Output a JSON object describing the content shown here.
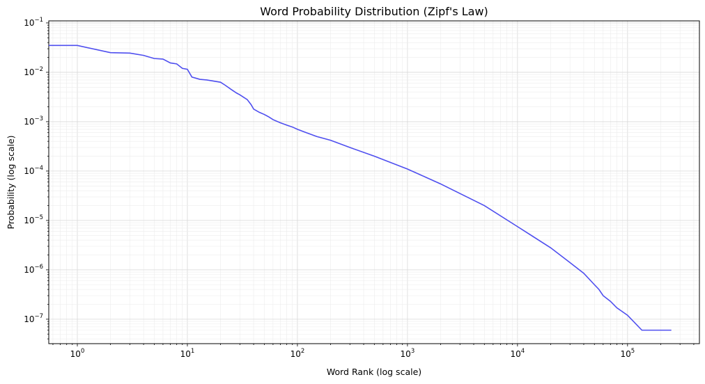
{
  "chart_data": {
    "type": "line",
    "title": "Word Probability Distribution (Zipf's Law)",
    "xlabel": "Word Rank (log scale)",
    "ylabel": "Probability (log scale)",
    "x_scale": "log",
    "y_scale": "log",
    "xlim": [
      0.55,
      450000
    ],
    "ylim": [
      3.2e-08,
      0.11
    ],
    "grid": "major and minor",
    "line_color": "#4444ee",
    "x_ticks": [
      {
        "base": "10",
        "exp": "0",
        "value": 1
      },
      {
        "base": "10",
        "exp": "1",
        "value": 10
      },
      {
        "base": "10",
        "exp": "2",
        "value": 100
      },
      {
        "base": "10",
        "exp": "3",
        "value": 1000
      },
      {
        "base": "10",
        "exp": "4",
        "value": 10000
      },
      {
        "base": "10",
        "exp": "5",
        "value": 100000
      }
    ],
    "y_ticks": [
      {
        "base": "10",
        "exp": "−1",
        "value": 0.1
      },
      {
        "base": "10",
        "exp": "−2",
        "value": 0.01
      },
      {
        "base": "10",
        "exp": "−3",
        "value": 0.001
      },
      {
        "base": "10",
        "exp": "−4",
        "value": 0.0001
      },
      {
        "base": "10",
        "exp": "−5",
        "value": 1e-05
      },
      {
        "base": "10",
        "exp": "−6",
        "value": 1e-06
      },
      {
        "base": "10",
        "exp": "−7",
        "value": 1e-07
      }
    ],
    "series": [
      {
        "x": [
          0.55,
          1,
          2,
          3,
          4,
          5,
          6,
          7,
          8,
          9,
          10,
          11,
          13,
          15,
          20,
          22,
          25,
          28,
          30,
          35,
          38,
          40,
          45,
          50,
          55,
          60,
          70,
          80,
          90,
          100,
          120,
          150,
          200,
          300,
          500,
          1000,
          2000,
          5000,
          10000,
          20000,
          30000,
          40000,
          50000,
          55000,
          60000,
          70000,
          80000,
          100000,
          135000,
          250000
        ],
        "y": [
          0.035,
          0.035,
          0.025,
          0.0245,
          0.022,
          0.019,
          0.0185,
          0.0155,
          0.0148,
          0.012,
          0.0115,
          0.008,
          0.0072,
          0.007,
          0.0063,
          0.0055,
          0.0045,
          0.0038,
          0.0035,
          0.0028,
          0.0022,
          0.0018,
          0.00155,
          0.0014,
          0.00125,
          0.0011,
          0.00095,
          0.00085,
          0.00078,
          0.0007,
          0.0006,
          0.0005,
          0.00042,
          0.0003,
          0.0002,
          0.00011,
          5.5e-05,
          2e-05,
          7.5e-06,
          2.8e-06,
          1.4e-06,
          8.5e-07,
          5e-07,
          4e-07,
          3e-07,
          2.3e-07,
          1.7e-07,
          1.2e-07,
          6e-08,
          6e-08
        ]
      }
    ]
  }
}
